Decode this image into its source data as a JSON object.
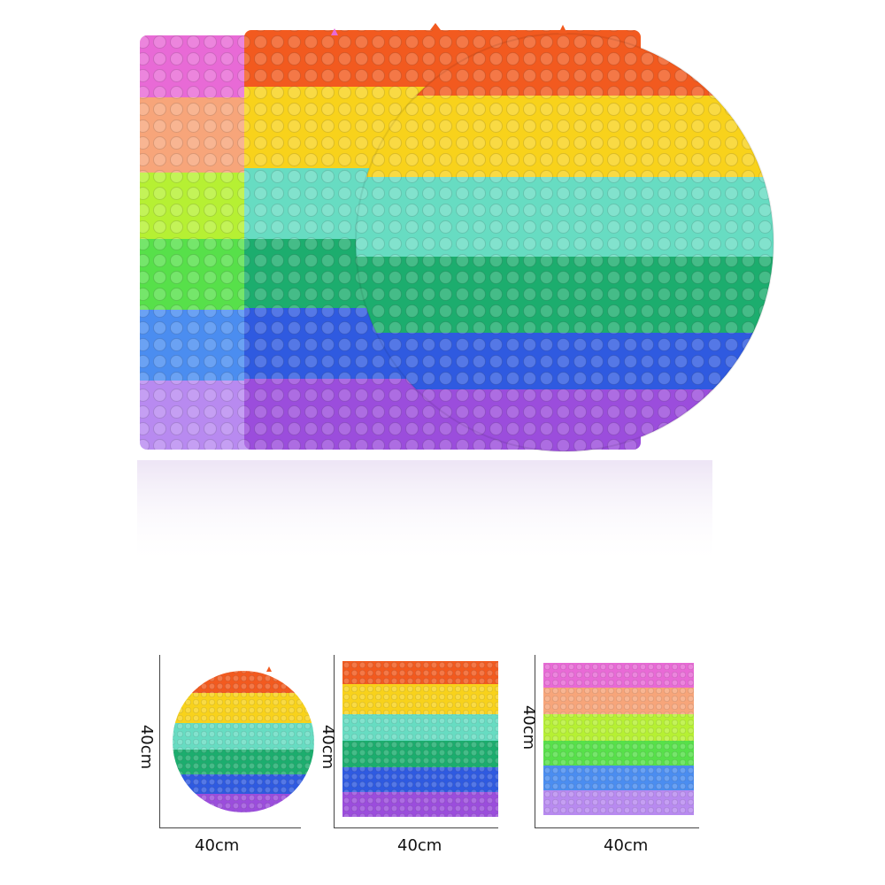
{
  "product": {
    "stripe_colors": {
      "red": "#f25a1f",
      "orange": "#f7a51c",
      "yellow": "#f8d21b",
      "aqua": "#67dcc2",
      "green": "#1cad6e",
      "blue": "#2f5ae0",
      "purple": "#9b4ddc",
      "pink": "#e86ad6",
      "peach": "#f7a57a",
      "lime": "#b6f033",
      "neon_green": "#57e04a",
      "sky": "#4b8df0",
      "lavender": "#b88af0"
    }
  },
  "sizes": [
    {
      "shape": "circle",
      "width_label": "40cm",
      "height_label": "40cm"
    },
    {
      "shape": "square-rainbow",
      "width_label": "40cm",
      "height_label": "40cm"
    },
    {
      "shape": "square-pastel",
      "width_label": "40cm",
      "height_label": "40cm"
    }
  ]
}
